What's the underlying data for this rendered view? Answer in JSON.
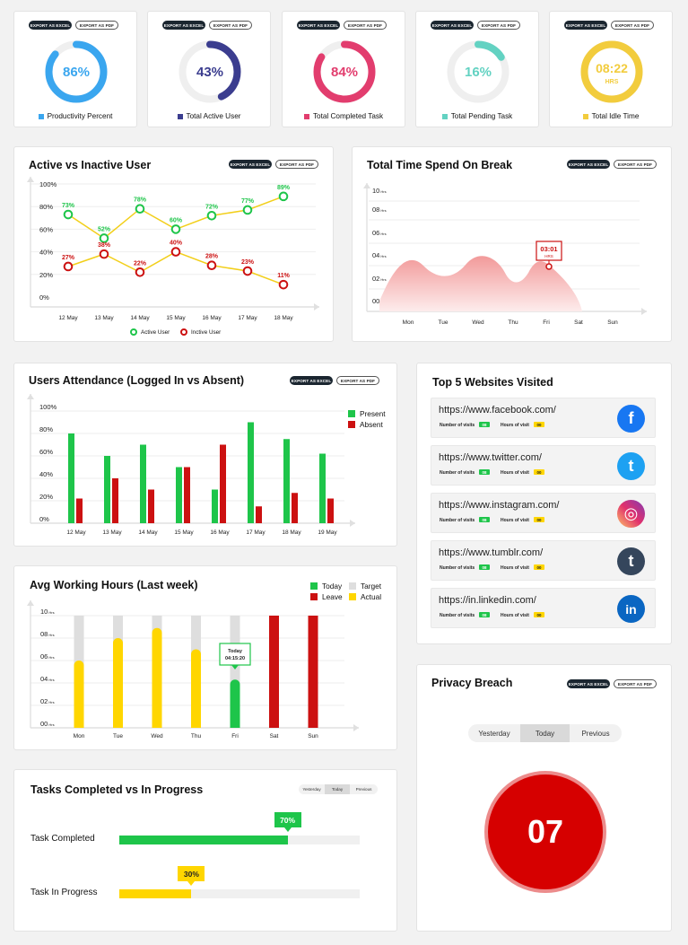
{
  "buttons": {
    "excel": "EXPORT AS EXCEL",
    "pdf": "EXPORT AS PDF"
  },
  "gauges": [
    {
      "value": "86%",
      "percent": 86,
      "label": "Productivity Percent",
      "color": "#3aa6ef"
    },
    {
      "value": "43%",
      "percent": 43,
      "label": "Total Active User",
      "color": "#3b3d8f"
    },
    {
      "value": "84%",
      "percent": 84,
      "label": "Total Completed Task",
      "color": "#e23d6e"
    },
    {
      "value": "16%",
      "percent": 16,
      "label": "Total Pending Task",
      "color": "#63d2c2"
    },
    {
      "value": "08:22",
      "unit": "HRS",
      "percent": 100,
      "label": "Total Idle Time",
      "color": "#f2cc3d"
    }
  ],
  "active_chart": {
    "title": "Active vs Inactive User",
    "chart_data": {
      "type": "line",
      "categories": [
        "12 May",
        "13 May",
        "14 May",
        "15 May",
        "16 May",
        "17 May",
        "18 May"
      ],
      "y_ticks": [
        "100%",
        "80%",
        "60%",
        "40%",
        "20%",
        "0%"
      ],
      "ylim": [
        0,
        100
      ],
      "series": [
        {
          "name": "Active User",
          "values": [
            73,
            52,
            78,
            60,
            72,
            77,
            89
          ],
          "labels": [
            "73%",
            "52%",
            "78%",
            "60%",
            "72%",
            "77%",
            "89%"
          ]
        },
        {
          "name": "Inctive User",
          "values": [
            27,
            38,
            22,
            40,
            28,
            23,
            11
          ],
          "labels": [
            "27%",
            "38%",
            "22%",
            "40%",
            "28%",
            "23%",
            "11%"
          ]
        }
      ]
    }
  },
  "break_chart": {
    "title": "Total Time Spend On Break",
    "chart_data": {
      "type": "area",
      "categories": [
        "Mon",
        "Tue",
        "Wed",
        "Thu",
        "Fri",
        "Sat",
        "Sun"
      ],
      "y_ticks": [
        "10",
        "08",
        "06",
        "04",
        "02",
        "00"
      ],
      "unit": "Hrs",
      "tooltip": {
        "value": "03:01",
        "unit": "HRS"
      }
    }
  },
  "attendance_chart": {
    "title": "Users Attendance (Logged In vs Absent)",
    "chart_data": {
      "type": "bar",
      "categories": [
        "12 May",
        "13 May",
        "14 May",
        "15 May",
        "16 May",
        "17 May",
        "18 May",
        "19 May"
      ],
      "y_ticks": [
        "100%",
        "80%",
        "60%",
        "40%",
        "20%",
        "0%"
      ],
      "ylim": [
        0,
        100
      ],
      "series": [
        {
          "name": "Present",
          "color": "#1ec54a",
          "values": [
            80,
            60,
            70,
            50,
            30,
            90,
            75,
            62
          ]
        },
        {
          "name": "Absent",
          "color": "#cc1111",
          "values": [
            22,
            40,
            30,
            50,
            70,
            15,
            27,
            22
          ]
        }
      ]
    }
  },
  "hours_chart": {
    "title": "Avg Working Hours (Last week)",
    "legend": [
      {
        "name": "Today",
        "color": "#1ec54a"
      },
      {
        "name": "Target",
        "color": "#dedede"
      },
      {
        "name": "Leave",
        "color": "#cc1111"
      },
      {
        "name": "Actual",
        "color": "#ffd600"
      }
    ],
    "chart_data": {
      "type": "bar",
      "categories": [
        "Mon",
        "Tue",
        "Wed",
        "Thu",
        "Fri",
        "Sat",
        "Sun"
      ],
      "y_ticks": [
        "10",
        "08",
        "06",
        "04",
        "02",
        "00"
      ],
      "unit": "Hrs",
      "ylim": [
        0,
        10
      ],
      "target": [
        10,
        10,
        10,
        10,
        10,
        0,
        0
      ],
      "actual": [
        6,
        8,
        8.9,
        7,
        0,
        0,
        0
      ],
      "today": [
        0,
        0,
        0,
        0,
        4.3,
        0,
        0
      ],
      "leave": [
        0,
        0,
        0,
        0,
        0,
        10,
        10
      ],
      "tooltip": {
        "title": "Today",
        "value": "04:15:20"
      }
    }
  },
  "tasks": {
    "title": "Tasks Completed vs In Progress",
    "tabs": [
      "Yesterday",
      "Today",
      "Previous"
    ],
    "items": [
      {
        "label": "Task Completed",
        "value": "70%",
        "percent": 70,
        "color": "#1ec54a"
      },
      {
        "label": "Task In Progress",
        "value": "30%",
        "percent": 30,
        "color": "#ffd600"
      }
    ]
  },
  "websites": {
    "title": "Top 5 Websites Visited",
    "visits_label": "Number of visits",
    "hours_label": "Hours of visit",
    "items": [
      {
        "url": "https://www.facebook.com/",
        "visits": "08",
        "hours": "00",
        "icon": "facebook-icon",
        "color": "#1877f2",
        "glyph": "f"
      },
      {
        "url": "https://www.twitter.com/",
        "visits": "08",
        "hours": "00",
        "icon": "twitter-icon",
        "color": "#1da1f2",
        "glyph": "t"
      },
      {
        "url": "https://www.instagram.com/",
        "visits": "08",
        "hours": "00",
        "icon": "instagram-icon",
        "color": "#c13584",
        "glyph": "◎"
      },
      {
        "url": "https://www.tumblr.com/",
        "visits": "08",
        "hours": "00",
        "icon": "tumblr-icon",
        "color": "#35465c",
        "glyph": "t"
      },
      {
        "url": "https://in.linkedin.com/",
        "visits": "08",
        "hours": "00",
        "icon": "linkedin-icon",
        "color": "#0a66c2",
        "glyph": "in"
      }
    ]
  },
  "privacy": {
    "title": "Privacy Breach",
    "tabs": [
      "Yesterday",
      "Today",
      "Previous"
    ],
    "value": "07"
  }
}
